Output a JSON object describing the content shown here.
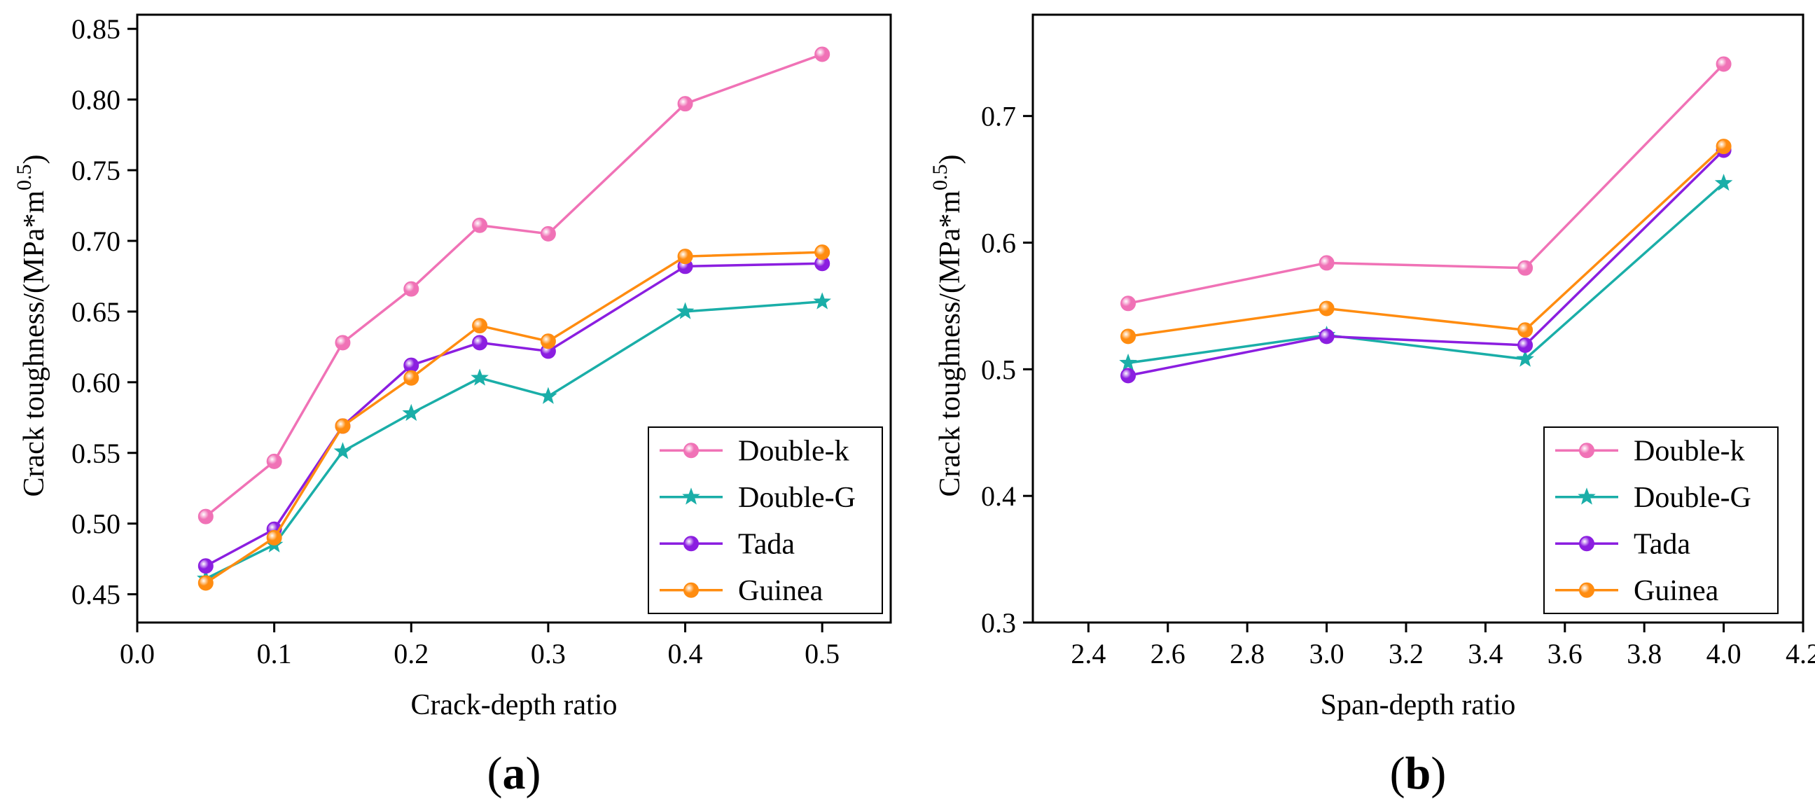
{
  "chart_data": [
    {
      "type": "line",
      "panel_label": "(a)",
      "panel_label_parts": [
        "(",
        "a",
        ")"
      ],
      "xlabel": "Crack-depth  ratio",
      "ylabel": "Crack toughness/(MPa*m",
      "ylabel_sup": "0.5",
      "ylabel_close": ")",
      "xlim": [
        0.0,
        0.55
      ],
      "ylim": [
        0.43,
        0.86
      ],
      "xticks": [
        0.0,
        0.1,
        0.2,
        0.3,
        0.4,
        0.5
      ],
      "xtick_labels": [
        "0.0",
        "0.1",
        "0.2",
        "0.3",
        "0.4",
        "0.5"
      ],
      "yticks": [
        0.45,
        0.5,
        0.55,
        0.6,
        0.65,
        0.7,
        0.75,
        0.8,
        0.85
      ],
      "ytick_labels": [
        "0.45",
        "0.50",
        "0.55",
        "0.60",
        "0.65",
        "0.70",
        "0.75",
        "0.80",
        "0.85"
      ],
      "legend_position": "bottom-right",
      "x": [
        0.05,
        0.1,
        0.15,
        0.2,
        0.25,
        0.3,
        0.4,
        0.5
      ],
      "series": [
        {
          "name": "Double-k",
          "color": "#f072b6",
          "marker": "circle",
          "values": [
            0.505,
            0.544,
            0.628,
            0.666,
            0.711,
            0.705,
            0.797,
            0.832
          ]
        },
        {
          "name": "Double-G",
          "color": "#1aaea8",
          "marker": "star",
          "values": [
            0.461,
            0.485,
            0.551,
            0.578,
            0.603,
            0.59,
            0.65,
            0.657
          ]
        },
        {
          "name": "Tada",
          "color": "#8b1ee0",
          "marker": "circle",
          "values": [
            0.47,
            0.496,
            0.569,
            0.612,
            0.628,
            0.622,
            0.682,
            0.684
          ]
        },
        {
          "name": "Guinea",
          "color": "#ff8c10",
          "marker": "circle",
          "values": [
            0.458,
            0.49,
            0.569,
            0.603,
            0.64,
            0.629,
            0.689,
            0.692
          ]
        }
      ]
    },
    {
      "type": "line",
      "panel_label": "(b)",
      "panel_label_parts": [
        "(",
        "b",
        ")"
      ],
      "xlabel": "Span-depth ratio",
      "ylabel": "Crack toughness/(MPa*m",
      "ylabel_sup": "0.5",
      "ylabel_close": ")",
      "xlim": [
        2.26,
        4.2
      ],
      "ylim": [
        0.3,
        0.78
      ],
      "xticks": [
        2.4,
        2.6,
        2.8,
        3.0,
        3.2,
        3.4,
        3.6,
        3.8,
        4.0,
        4.2
      ],
      "xtick_labels": [
        "2.4",
        "2.6",
        "2.8",
        "3.0",
        "3.2",
        "3.4",
        "3.6",
        "3.8",
        "4.0",
        "4.2"
      ],
      "yticks": [
        0.3,
        0.4,
        0.5,
        0.6,
        0.7
      ],
      "ytick_labels": [
        "0.3",
        "0.4",
        "0.5",
        "0.6",
        "0.7"
      ],
      "legend_position": "bottom-right",
      "x": [
        2.5,
        3.0,
        3.5,
        4.0
      ],
      "series": [
        {
          "name": "Double-k",
          "color": "#f072b6",
          "marker": "circle",
          "values": [
            0.552,
            0.584,
            0.58,
            0.741
          ]
        },
        {
          "name": "Double-G",
          "color": "#1aaea8",
          "marker": "star",
          "values": [
            0.505,
            0.527,
            0.508,
            0.647
          ]
        },
        {
          "name": "Tada",
          "color": "#8b1ee0",
          "marker": "circle",
          "values": [
            0.495,
            0.526,
            0.519,
            0.673
          ]
        },
        {
          "name": "Guinea",
          "color": "#ff8c10",
          "marker": "circle",
          "values": [
            0.526,
            0.548,
            0.531,
            0.676
          ]
        }
      ]
    }
  ]
}
